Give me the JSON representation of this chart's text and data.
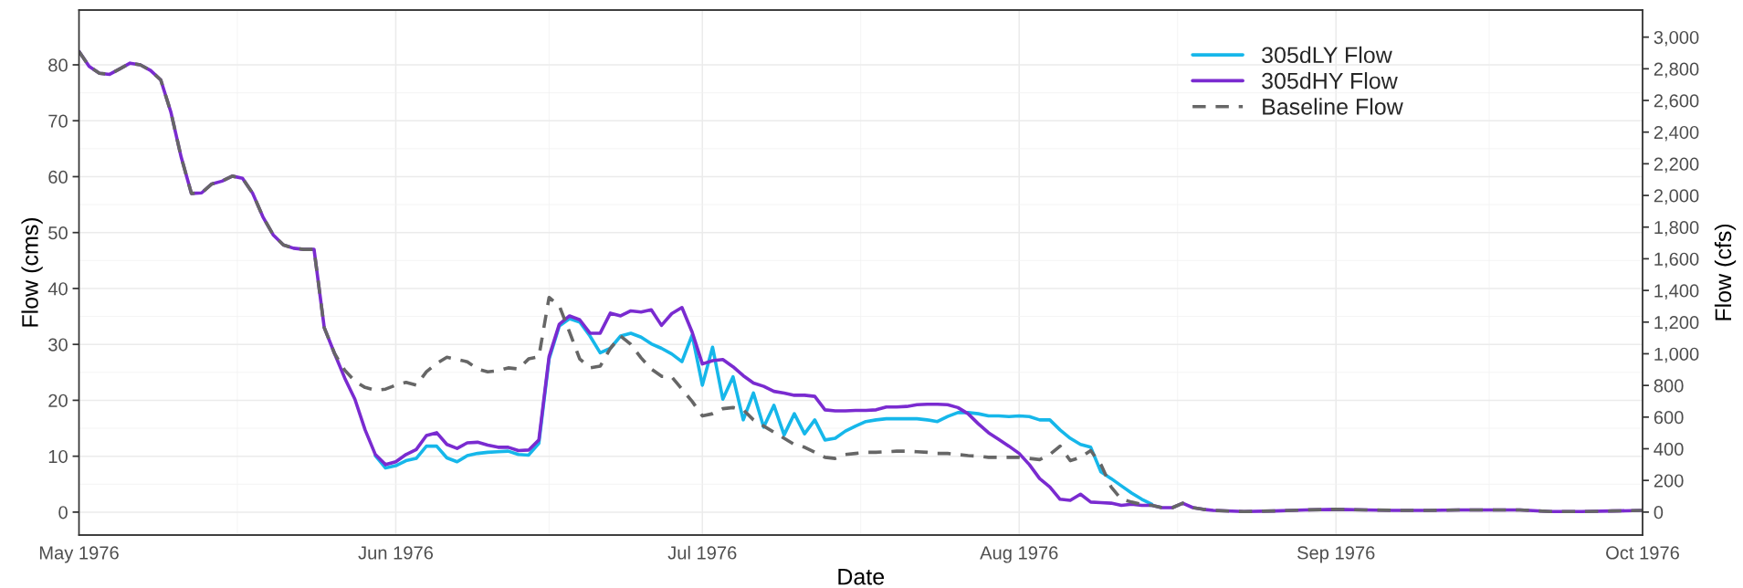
{
  "chart_data": {
    "type": "line",
    "xlabel": "Date",
    "ylabel": "Flow (cms)",
    "y2label": "Flow (cfs)",
    "x": [
      "1976-05-01",
      "1976-05-02",
      "1976-05-03",
      "1976-05-04",
      "1976-05-05",
      "1976-05-06",
      "1976-05-07",
      "1976-05-08",
      "1976-05-09",
      "1976-05-10",
      "1976-05-11",
      "1976-05-12",
      "1976-05-13",
      "1976-05-14",
      "1976-05-15",
      "1976-05-16",
      "1976-05-17",
      "1976-05-18",
      "1976-05-19",
      "1976-05-20",
      "1976-05-21",
      "1976-05-22",
      "1976-05-23",
      "1976-05-24",
      "1976-05-25",
      "1976-05-26",
      "1976-05-27",
      "1976-05-28",
      "1976-05-29",
      "1976-05-30",
      "1976-05-31",
      "1976-06-01",
      "1976-06-02",
      "1976-06-03",
      "1976-06-04",
      "1976-06-05",
      "1976-06-06",
      "1976-06-07",
      "1976-06-08",
      "1976-06-09",
      "1976-06-10",
      "1976-06-11",
      "1976-06-12",
      "1976-06-13",
      "1976-06-14",
      "1976-06-15",
      "1976-06-16",
      "1976-06-17",
      "1976-06-18",
      "1976-06-19",
      "1976-06-20",
      "1976-06-21",
      "1976-06-22",
      "1976-06-23",
      "1976-06-24",
      "1976-06-25",
      "1976-06-26",
      "1976-06-27",
      "1976-06-28",
      "1976-06-29",
      "1976-06-30",
      "1976-07-01",
      "1976-07-02",
      "1976-07-03",
      "1976-07-04",
      "1976-07-05",
      "1976-07-06",
      "1976-07-07",
      "1976-07-08",
      "1976-07-09",
      "1976-07-10",
      "1976-07-11",
      "1976-07-12",
      "1976-07-13",
      "1976-07-14",
      "1976-07-15",
      "1976-07-16",
      "1976-07-17",
      "1976-07-18",
      "1976-07-19",
      "1976-07-20",
      "1976-07-21",
      "1976-07-22",
      "1976-07-23",
      "1976-07-24",
      "1976-07-25",
      "1976-07-26",
      "1976-07-27",
      "1976-07-28",
      "1976-07-29",
      "1976-07-30",
      "1976-07-31",
      "1976-08-01",
      "1976-08-02",
      "1976-08-03",
      "1976-08-04",
      "1976-08-05",
      "1976-08-06",
      "1976-08-07",
      "1976-08-08",
      "1976-08-09",
      "1976-08-10",
      "1976-08-11",
      "1976-08-12",
      "1976-08-13",
      "1976-08-14",
      "1976-08-15",
      "1976-08-16",
      "1976-08-17",
      "1976-08-18",
      "1976-08-19",
      "1976-08-20",
      "1976-08-23",
      "1976-08-26",
      "1976-08-29",
      "1976-09-01",
      "1976-09-04",
      "1976-09-07",
      "1976-09-10",
      "1976-09-13",
      "1976-09-16",
      "1976-09-19",
      "1976-09-22",
      "1976-09-25",
      "1976-09-28",
      "1976-10-01"
    ],
    "series": [
      {
        "name": "305dLY Flow",
        "color": "#16b7ea",
        "line_style": "solid",
        "values": [
          null,
          null,
          null,
          null,
          null,
          null,
          null,
          null,
          null,
          null,
          null,
          null,
          null,
          null,
          null,
          null,
          null,
          null,
          null,
          null,
          null,
          null,
          null,
          null,
          null,
          null,
          null,
          null,
          null,
          10.1,
          7.9,
          8.3,
          9.2,
          9.6,
          11.8,
          11.8,
          9.7,
          9.0,
          10.1,
          10.5,
          10.7,
          10.8,
          10.9,
          10.3,
          10.2,
          12.3,
          27.4,
          33.3,
          34.6,
          34.0,
          31.5,
          28.5,
          29.3,
          31.5,
          32.0,
          31.3,
          30.1,
          29.3,
          28.3,
          26.9,
          31.7,
          22.7,
          29.5,
          20.2,
          24.2,
          16.5,
          21.3,
          15.2,
          19.1,
          13.8,
          17.6,
          14.0,
          16.5,
          12.9,
          13.2,
          14.5,
          15.4,
          16.2,
          16.5,
          16.7,
          16.7,
          16.7,
          16.7,
          16.5,
          16.2,
          17.1,
          17.8,
          17.8,
          17.6,
          17.2,
          17.2,
          17.1,
          17.2,
          17.1,
          16.5,
          16.5,
          14.7,
          13.2,
          12.1,
          11.6,
          7.2,
          6.0,
          4.7,
          3.4,
          2.3,
          1.4,
          null,
          null,
          null,
          null,
          null,
          null,
          null,
          null,
          null,
          null,
          null,
          null,
          null,
          null,
          null,
          null,
          null,
          null,
          null,
          null
        ]
      },
      {
        "name": "305dHY Flow",
        "color": "#7a2bd0",
        "line_style": "solid",
        "values": [
          82.4,
          79.7,
          78.5,
          78.3,
          79.3,
          80.3,
          80.0,
          79.0,
          77.3,
          71.5,
          63.5,
          57.0,
          57.1,
          58.7,
          59.2,
          60.1,
          59.7,
          57.0,
          52.8,
          49.6,
          47.8,
          47.2,
          47.0,
          47.0,
          33.0,
          28.4,
          24.0,
          20.2,
          14.7,
          10.3,
          8.5,
          9.0,
          10.3,
          11.2,
          13.7,
          14.2,
          12.1,
          11.4,
          12.4,
          12.5,
          12.0,
          11.6,
          11.6,
          11.0,
          11.1,
          12.9,
          27.8,
          33.6,
          35.1,
          34.4,
          32.0,
          32.0,
          35.6,
          35.1,
          36.0,
          35.8,
          36.2,
          33.4,
          35.5,
          36.6,
          32.2,
          26.5,
          27.1,
          27.3,
          26.0,
          24.4,
          23.1,
          22.5,
          21.6,
          21.3,
          20.9,
          20.9,
          20.7,
          18.3,
          18.1,
          18.1,
          18.2,
          18.2,
          18.3,
          18.8,
          18.8,
          18.9,
          19.2,
          19.3,
          19.3,
          19.2,
          18.7,
          17.6,
          15.8,
          14.2,
          13.0,
          11.8,
          10.5,
          8.5,
          6.0,
          4.5,
          2.3,
          2.1,
          3.2,
          1.8,
          1.7,
          1.6,
          1.2,
          1.4,
          1.2,
          1.2,
          0.8,
          0.8,
          1.6,
          0.8,
          0.5,
          0.3,
          0.1,
          0.2,
          0.4,
          0.5,
          0.4,
          0.3,
          0.3,
          0.4,
          0.4,
          0.4,
          0.1,
          0.1,
          0.2,
          0.3
        ]
      },
      {
        "name": "Baseline Flow",
        "color": "#666666",
        "line_style": "dashed",
        "values": [
          82.4,
          79.7,
          78.5,
          78.3,
          79.3,
          80.3,
          80.0,
          79.0,
          77.3,
          71.5,
          63.5,
          57.0,
          57.1,
          58.7,
          59.2,
          60.1,
          59.7,
          57.0,
          52.8,
          49.6,
          47.8,
          47.2,
          47.0,
          47.0,
          33.0,
          28.4,
          25.4,
          23.4,
          22.3,
          21.8,
          22.0,
          22.7,
          23.2,
          22.7,
          25.1,
          26.6,
          27.7,
          27.3,
          26.9,
          25.6,
          25.1,
          25.3,
          25.8,
          25.6,
          27.4,
          27.8,
          38.4,
          36.9,
          32.2,
          27.4,
          25.8,
          26.1,
          29.3,
          31.5,
          30.0,
          27.6,
          25.6,
          24.3,
          24.2,
          22.0,
          19.8,
          17.2,
          17.6,
          18.5,
          18.7,
          18.3,
          16.5,
          15.4,
          14.3,
          13.2,
          12.1,
          11.6,
          10.7,
          9.8,
          9.6,
          10.3,
          10.5,
          10.7,
          10.7,
          10.8,
          10.9,
          10.9,
          10.8,
          10.7,
          10.5,
          10.5,
          10.3,
          10.1,
          10.0,
          9.8,
          9.8,
          9.8,
          9.8,
          9.6,
          9.4,
          10.3,
          11.8,
          9.2,
          9.8,
          11.0,
          8.5,
          4.5,
          2.3,
          1.8,
          1.4,
          1.2,
          0.8,
          0.8,
          1.6,
          0.8,
          0.5,
          0.3,
          0.1,
          0.2,
          0.4,
          0.5,
          0.4,
          0.3,
          0.3,
          0.4,
          0.4,
          0.4,
          0.1,
          0.1,
          0.2,
          0.3
        ]
      }
    ],
    "xlim": [
      "1976-05-01",
      "1976-10-01"
    ],
    "xticks": [
      {
        "value": "1976-05-01",
        "label": "May 1976"
      },
      {
        "value": "1976-06-01",
        "label": "Jun 1976"
      },
      {
        "value": "1976-07-01",
        "label": "Jul 1976"
      },
      {
        "value": "1976-08-01",
        "label": "Aug 1976"
      },
      {
        "value": "1976-09-01",
        "label": "Sep 1976"
      },
      {
        "value": "1976-10-01",
        "label": "Oct 1976"
      }
    ],
    "ylim": [
      -4.1,
      89.8
    ],
    "yticks": [
      0,
      10,
      20,
      30,
      40,
      50,
      60,
      70,
      80
    ],
    "y2lim": [
      -145,
      3171
    ],
    "y2ticks": [
      0,
      200,
      400,
      600,
      800,
      {
        "value": 1000,
        "label": "1,000"
      },
      {
        "value": 1200,
        "label": "1,200"
      },
      {
        "value": 1400,
        "label": "1,400"
      },
      {
        "value": 1600,
        "label": "1,600"
      },
      {
        "value": 1800,
        "label": "1,800"
      },
      {
        "value": 2000,
        "label": "2,000"
      },
      {
        "value": 2200,
        "label": "2,200"
      },
      {
        "value": 2400,
        "label": "2,400"
      },
      {
        "value": 2600,
        "label": "2,600"
      },
      {
        "value": 2800,
        "label": "2,800"
      },
      {
        "value": 3000,
        "label": "3,000"
      }
    ],
    "grid": true,
    "legend": "top right"
  }
}
